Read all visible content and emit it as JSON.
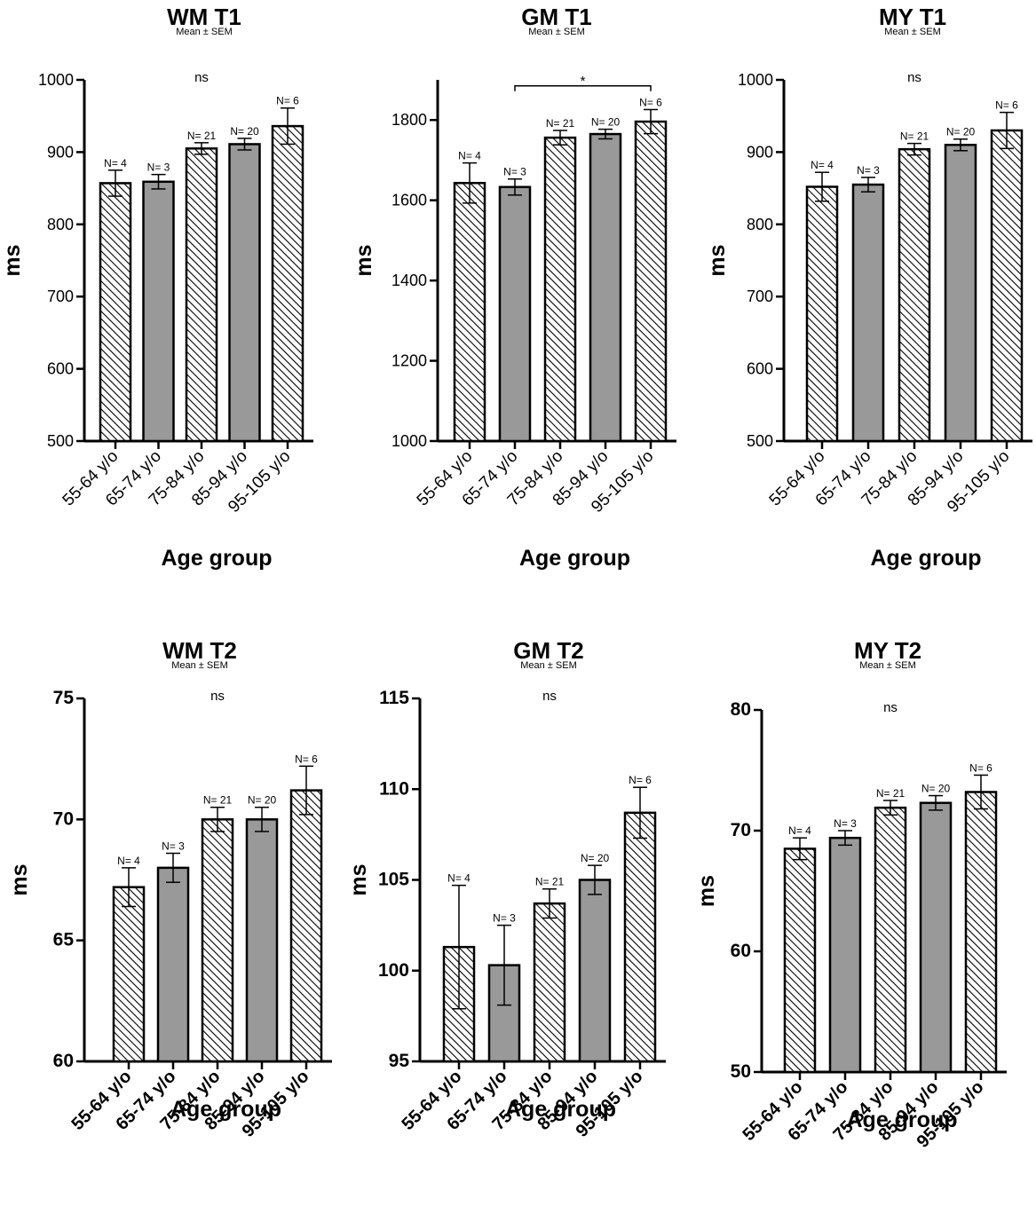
{
  "colors": {
    "solid_fill": "#999999",
    "stroke": "#000000",
    "hatch_line": "#000000",
    "hatch_bg": "#ffffff"
  },
  "chart_data": [
    {
      "type": "bar",
      "title": "WM T1",
      "subtitle": "Mean ± SEM",
      "xlabel": "Age group",
      "ylabel": "ms",
      "ylim": [
        500,
        1000
      ],
      "yticks": [
        500,
        600,
        700,
        800,
        900,
        1000
      ],
      "categories": [
        "55-64 y/o",
        "65-74 y/o",
        "75-84 y/o",
        "85-94 y/o",
        "95-105 y/o"
      ],
      "values": [
        857,
        859,
        905,
        911,
        936
      ],
      "errors": [
        18,
        10,
        8,
        8,
        25
      ],
      "n_labels": [
        "N= 4",
        "N= 3",
        "N= 21",
        "N= 20",
        "N= 6"
      ],
      "fills": [
        "hatch",
        "solid",
        "hatch",
        "solid",
        "hatch"
      ],
      "significance": "ns",
      "bracket": null,
      "bold_ticks": false
    },
    {
      "type": "bar",
      "title": "GM T1",
      "subtitle": "Mean ± SEM",
      "xlabel": "Age group",
      "ylabel": "ms",
      "ylim": [
        1000,
        1900
      ],
      "yticks": [
        1000,
        1200,
        1400,
        1600,
        1800
      ],
      "categories": [
        "55-64 y/o",
        "65-74 y/o",
        "75-84 y/o",
        "85-94 y/o",
        "95-105 y/o"
      ],
      "values": [
        1643,
        1633,
        1756,
        1765,
        1796
      ],
      "errors": [
        50,
        20,
        18,
        12,
        30
      ],
      "n_labels": [
        "N= 4",
        "N= 3",
        "N= 21",
        "N= 20",
        "N= 6"
      ],
      "fills": [
        "hatch",
        "solid",
        "hatch",
        "solid",
        "hatch"
      ],
      "significance": "",
      "bracket": {
        "from": 1,
        "to": 4,
        "label": "*",
        "y": 1885
      },
      "bold_ticks": false
    },
    {
      "type": "bar",
      "title": "MY T1",
      "subtitle": "Mean ± SEM",
      "xlabel": "Age group",
      "ylabel": "ms",
      "ylim": [
        500,
        1000
      ],
      "yticks": [
        500,
        600,
        700,
        800,
        900,
        1000
      ],
      "categories": [
        "55-64 y/o",
        "65-74 y/o",
        "75-84 y/o",
        "85-94 y/o",
        "95-105 y/o"
      ],
      "values": [
        852,
        855,
        904,
        910,
        930
      ],
      "errors": [
        20,
        10,
        8,
        8,
        25
      ],
      "n_labels": [
        "N= 4",
        "N= 3",
        "N= 21",
        "N= 20",
        "N= 6"
      ],
      "fills": [
        "hatch",
        "solid",
        "hatch",
        "solid",
        "hatch"
      ],
      "significance": "ns",
      "bracket": null,
      "bold_ticks": false
    },
    {
      "type": "bar",
      "title": "WM T2",
      "subtitle": "Mean ± SEM",
      "xlabel": "Age group",
      "ylabel": "ms",
      "ylim": [
        60,
        75
      ],
      "yticks": [
        60,
        65,
        70,
        75
      ],
      "categories": [
        "55-64 y/o",
        "65-74 y/o",
        "75-84 y/o",
        "85-94 y/o",
        "95-105 y/o"
      ],
      "values": [
        67.2,
        68.0,
        70.0,
        70.0,
        71.2
      ],
      "errors": [
        0.8,
        0.6,
        0.5,
        0.5,
        1.0
      ],
      "n_labels": [
        "N= 4",
        "N= 3",
        "N= 21",
        "N= 20",
        "N= 6"
      ],
      "fills": [
        "hatch",
        "solid",
        "hatch",
        "solid",
        "hatch"
      ],
      "significance": "ns",
      "bracket": null,
      "bold_ticks": true
    },
    {
      "type": "bar",
      "title": "GM T2",
      "subtitle": "Mean ± SEM",
      "xlabel": "Age group",
      "ylabel": "ms",
      "ylim": [
        95,
        115
      ],
      "yticks": [
        95,
        100,
        105,
        110,
        115
      ],
      "categories": [
        "55-64 y/o",
        "65-74 y/o",
        "75-84 y/o",
        "85-94 y/o",
        "95-105 y/o"
      ],
      "values": [
        101.3,
        100.3,
        103.7,
        105.0,
        108.7
      ],
      "errors": [
        3.4,
        2.2,
        0.8,
        0.8,
        1.4
      ],
      "n_labels": [
        "N= 4",
        "N= 3",
        "N= 21",
        "N= 20",
        "N= 6"
      ],
      "fills": [
        "hatch",
        "solid",
        "hatch",
        "solid",
        "hatch"
      ],
      "significance": "ns",
      "bracket": null,
      "bold_ticks": true
    },
    {
      "type": "bar",
      "title": "MY T2",
      "subtitle": "Mean ± SEM",
      "xlabel": "Age group",
      "ylabel": "ms",
      "ylim": [
        50,
        80
      ],
      "yticks": [
        50,
        60,
        70,
        80
      ],
      "categories": [
        "55-64 y/o",
        "65-74 y/o",
        "75-84 y/o",
        "85-94 y/o",
        "95-105 y/o"
      ],
      "values": [
        68.5,
        69.4,
        71.9,
        72.3,
        73.2
      ],
      "errors": [
        0.9,
        0.6,
        0.6,
        0.6,
        1.4
      ],
      "n_labels": [
        "N= 4",
        "N= 3",
        "N= 21",
        "N= 20",
        "N= 6"
      ],
      "fills": [
        "hatch",
        "solid",
        "hatch",
        "solid",
        "hatch"
      ],
      "significance": "ns",
      "bracket": null,
      "bold_ticks": true
    }
  ]
}
